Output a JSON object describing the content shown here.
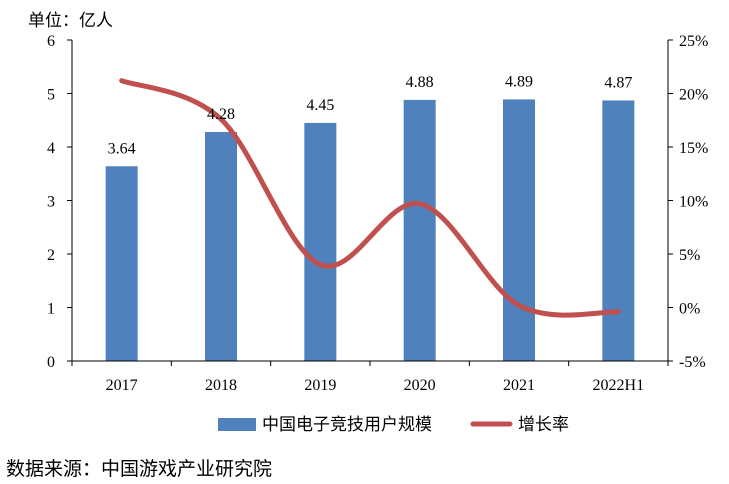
{
  "unit_label": "单位：亿人",
  "source": "数据来源：中国游戏产业研究院",
  "colors": {
    "bar": "#4f81bd",
    "line": "#c0504d"
  },
  "chart_data": {
    "type": "bar+line",
    "categories": [
      "2017",
      "2018",
      "2019",
      "2020",
      "2021",
      "2022H1"
    ],
    "series": [
      {
        "name": "中国电子竞技用户规模",
        "type": "bar",
        "axis": "left",
        "values": [
          3.64,
          4.28,
          4.45,
          4.88,
          4.89,
          4.87
        ]
      },
      {
        "name": "增长率",
        "type": "line",
        "axis": "right",
        "smooth": true,
        "values": [
          21.2,
          17.6,
          4.0,
          9.7,
          0.2,
          -0.4
        ]
      }
    ],
    "y_left": {
      "min": 0,
      "max": 6,
      "ticks": [
        "0",
        "1",
        "2",
        "3",
        "4",
        "5",
        "6"
      ]
    },
    "y_right": {
      "min": -5,
      "max": 25,
      "ticks": [
        "-5%",
        "0%",
        "5%",
        "10%",
        "15%",
        "20%",
        "25%"
      ]
    },
    "data_labels": [
      "3.64",
      "4.28",
      "4.45",
      "4.88",
      "4.89",
      "4.87"
    ],
    "legend_position": "bottom"
  }
}
